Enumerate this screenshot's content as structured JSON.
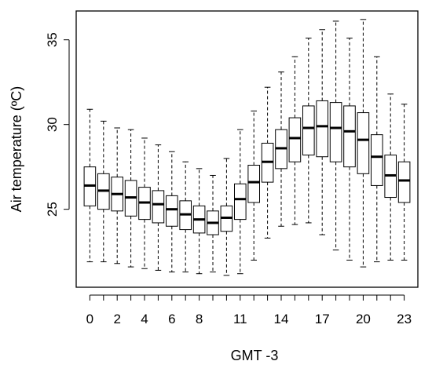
{
  "chart_data": {
    "type": "box",
    "xlabel": "GMT -3",
    "ylabel": "Air temperature (ºC)",
    "x_tick_labels": [
      {
        "hour": 0,
        "label": "0"
      },
      {
        "hour": 2,
        "label": "2"
      },
      {
        "hour": 4,
        "label": "4"
      },
      {
        "hour": 6,
        "label": "6"
      },
      {
        "hour": 8,
        "label": "8"
      },
      {
        "hour": 11,
        "label": "11"
      },
      {
        "hour": 14,
        "label": "14"
      },
      {
        "hour": 17,
        "label": "17"
      },
      {
        "hour": 20,
        "label": "20"
      },
      {
        "hour": 23,
        "label": "23"
      }
    ],
    "y_ticks": [
      25,
      30,
      35
    ],
    "ylim": [
      20.4,
      36.7
    ],
    "xlim": [
      -1,
      24
    ],
    "grid": false,
    "legend": "none",
    "categories": [
      0,
      1,
      2,
      3,
      4,
      5,
      6,
      7,
      8,
      9,
      10,
      11,
      12,
      13,
      14,
      15,
      16,
      17,
      18,
      19,
      20,
      21,
      22,
      23
    ],
    "boxes": [
      {
        "hour": 0,
        "min": 21.9,
        "q1": 25.2,
        "median": 26.4,
        "q3": 27.5,
        "max": 30.9
      },
      {
        "hour": 1,
        "min": 21.9,
        "q1": 25.0,
        "median": 26.1,
        "q3": 27.1,
        "max": 30.2
      },
      {
        "hour": 2,
        "min": 21.8,
        "q1": 24.9,
        "median": 25.9,
        "q3": 26.9,
        "max": 29.8
      },
      {
        "hour": 3,
        "min": 21.6,
        "q1": 24.6,
        "median": 25.7,
        "q3": 26.7,
        "max": 29.7
      },
      {
        "hour": 4,
        "min": 21.5,
        "q1": 24.4,
        "median": 25.4,
        "q3": 26.3,
        "max": 29.2
      },
      {
        "hour": 5,
        "min": 21.4,
        "q1": 24.2,
        "median": 25.3,
        "q3": 26.1,
        "max": 28.8
      },
      {
        "hour": 6,
        "min": 21.3,
        "q1": 24.0,
        "median": 25.0,
        "q3": 25.8,
        "max": 28.4
      },
      {
        "hour": 7,
        "min": 21.3,
        "q1": 23.8,
        "median": 24.7,
        "q3": 25.5,
        "max": 27.8
      },
      {
        "hour": 8,
        "min": 21.2,
        "q1": 23.6,
        "median": 24.4,
        "q3": 25.2,
        "max": 27.4
      },
      {
        "hour": 9,
        "min": 21.3,
        "q1": 23.5,
        "median": 24.2,
        "q3": 24.9,
        "max": 27.0
      },
      {
        "hour": 10,
        "min": 21.1,
        "q1": 23.7,
        "median": 24.5,
        "q3": 25.2,
        "max": 28.0
      },
      {
        "hour": 11,
        "min": 21.2,
        "q1": 24.4,
        "median": 25.6,
        "q3": 26.5,
        "max": 29.7
      },
      {
        "hour": 12,
        "min": 22.0,
        "q1": 25.4,
        "median": 26.6,
        "q3": 27.6,
        "max": 30.8
      },
      {
        "hour": 13,
        "min": 23.3,
        "q1": 26.6,
        "median": 27.8,
        "q3": 28.9,
        "max": 32.2
      },
      {
        "hour": 14,
        "min": 24.0,
        "q1": 27.4,
        "median": 28.6,
        "q3": 29.7,
        "max": 33.1
      },
      {
        "hour": 15,
        "min": 24.1,
        "q1": 27.8,
        "median": 29.2,
        "q3": 30.4,
        "max": 34.0
      },
      {
        "hour": 16,
        "min": 24.2,
        "q1": 28.2,
        "median": 29.8,
        "q3": 31.1,
        "max": 35.1
      },
      {
        "hour": 17,
        "min": 23.5,
        "q1": 28.1,
        "median": 29.9,
        "q3": 31.4,
        "max": 35.6
      },
      {
        "hour": 18,
        "min": 22.6,
        "q1": 27.8,
        "median": 29.8,
        "q3": 31.3,
        "max": 36.1
      },
      {
        "hour": 19,
        "min": 22.0,
        "q1": 27.5,
        "median": 29.6,
        "q3": 31.1,
        "max": 35.1
      },
      {
        "hour": 20,
        "min": 21.6,
        "q1": 27.1,
        "median": 29.1,
        "q3": 30.7,
        "max": 36.2
      },
      {
        "hour": 21,
        "min": 21.9,
        "q1": 26.4,
        "median": 28.1,
        "q3": 29.4,
        "max": 34.0
      },
      {
        "hour": 22,
        "min": 22.0,
        "q1": 25.7,
        "median": 27.0,
        "q3": 28.2,
        "max": 31.8
      },
      {
        "hour": 23,
        "min": 22.0,
        "q1": 25.4,
        "median": 26.7,
        "q3": 27.8,
        "max": 31.2
      }
    ]
  }
}
